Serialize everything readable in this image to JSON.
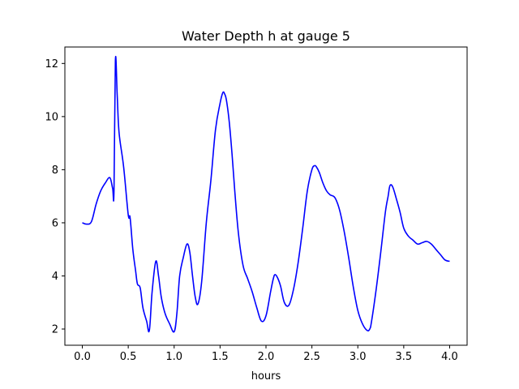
{
  "chart_data": {
    "type": "line",
    "title": "Water Depth h at gauge 5",
    "xlabel": "hours",
    "ylabel": "",
    "xlim": [
      -0.19,
      4.19
    ],
    "ylim": [
      1.39,
      12.62
    ],
    "xticks": [
      0.0,
      0.5,
      1.0,
      1.5,
      2.0,
      2.5,
      3.0,
      3.5,
      4.0
    ],
    "xtick_labels": [
      "0.0",
      "0.5",
      "1.0",
      "1.5",
      "2.0",
      "2.5",
      "3.0",
      "3.5",
      "4.0"
    ],
    "yticks": [
      2,
      4,
      6,
      8,
      10,
      12
    ],
    "ytick_labels": [
      "2",
      "4",
      "6",
      "8",
      "10",
      "12"
    ],
    "grid": false,
    "legend": "none",
    "series": [
      {
        "color": "#0000ff",
        "x": [
          0.0,
          0.05,
          0.1,
          0.15,
          0.2,
          0.25,
          0.3,
          0.33,
          0.345,
          0.36,
          0.38,
          0.4,
          0.45,
          0.5,
          0.52,
          0.55,
          0.58,
          0.6,
          0.63,
          0.66,
          0.7,
          0.73,
          0.76,
          0.8,
          0.83,
          0.86,
          0.9,
          0.95,
          1.0,
          1.03,
          1.06,
          1.1,
          1.14,
          1.17,
          1.2,
          1.23,
          1.26,
          1.3,
          1.35,
          1.4,
          1.45,
          1.5,
          1.53,
          1.55,
          1.57,
          1.6,
          1.63,
          1.66,
          1.7,
          1.75,
          1.8,
          1.85,
          1.9,
          1.95,
          2.0,
          2.05,
          2.08,
          2.1,
          2.13,
          2.16,
          2.2,
          2.25,
          2.3,
          2.35,
          2.4,
          2.45,
          2.5,
          2.53,
          2.55,
          2.58,
          2.62,
          2.66,
          2.7,
          2.75,
          2.8,
          2.85,
          2.9,
          2.95,
          3.0,
          3.05,
          3.1,
          3.13,
          3.15,
          3.2,
          3.25,
          3.3,
          3.33,
          3.35,
          3.38,
          3.42,
          3.46,
          3.5,
          3.55,
          3.6,
          3.65,
          3.7,
          3.75,
          3.8,
          3.85,
          3.9,
          3.95,
          4.0
        ],
        "y": [
          6.0,
          5.95,
          6.05,
          6.7,
          7.2,
          7.5,
          7.7,
          7.3,
          7.2,
          12.1,
          10.8,
          9.4,
          8.1,
          6.3,
          6.2,
          5.0,
          4.2,
          3.7,
          3.55,
          2.8,
          2.3,
          1.95,
          3.4,
          4.55,
          4.0,
          3.2,
          2.6,
          2.2,
          1.9,
          2.6,
          4.0,
          4.7,
          5.2,
          4.9,
          4.0,
          3.2,
          2.95,
          3.8,
          6.0,
          7.6,
          9.5,
          10.5,
          10.9,
          10.85,
          10.6,
          9.8,
          8.6,
          7.2,
          5.6,
          4.4,
          3.9,
          3.4,
          2.8,
          2.3,
          2.5,
          3.4,
          3.9,
          4.05,
          3.9,
          3.6,
          3.0,
          2.9,
          3.5,
          4.5,
          5.8,
          7.2,
          8.0,
          8.15,
          8.1,
          7.9,
          7.5,
          7.2,
          7.05,
          6.95,
          6.5,
          5.7,
          4.7,
          3.6,
          2.7,
          2.2,
          1.95,
          2.0,
          2.3,
          3.5,
          4.9,
          6.4,
          7.0,
          7.4,
          7.35,
          6.9,
          6.4,
          5.8,
          5.5,
          5.35,
          5.2,
          5.25,
          5.3,
          5.2,
          5.0,
          4.8,
          4.6,
          4.55
        ]
      }
    ]
  }
}
